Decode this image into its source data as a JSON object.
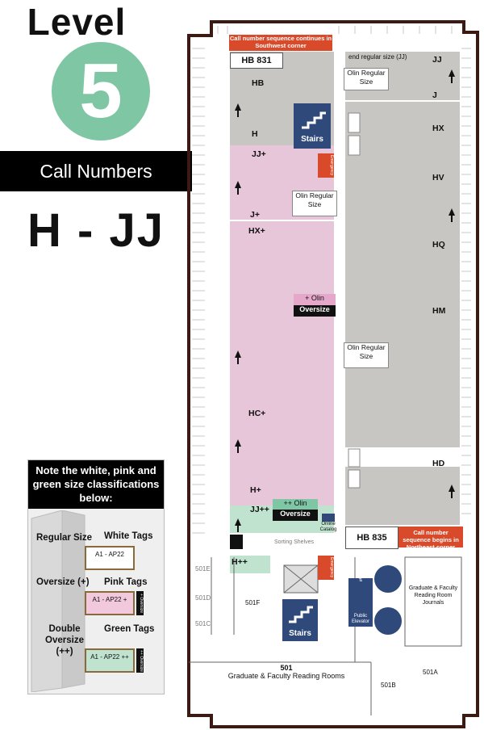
{
  "header": {
    "level_word": "Level",
    "level_number": "5",
    "call_numbers_label": "Call Numbers",
    "range": "H - JJ"
  },
  "legend": {
    "heading": "Note the white, pink and green size classifications below:",
    "regular_label": "Regular Size",
    "white_tags": "White Tags",
    "oversize_label": "Oversize (+)",
    "pink_tags": "Pink Tags",
    "double_label": "Double Oversize (++)",
    "green_tags": "Green Tags",
    "tag_regular": "A1 - AP22",
    "tag_over": "A1 - AP22 +",
    "tag_double": "A1 - AP22 ++",
    "side_over": "+ Oversize",
    "side_double": "++ Oversize"
  },
  "map": {
    "hb_top": "HB 831",
    "hb_bottom": "HB 835",
    "banner_top": "Call number sequence continues in Southwest corner",
    "banner_bottom": "Call number sequence begins in Northeast corner",
    "end_regular": "end regular size (JJ)",
    "olin_regular": "Olin Regular Size",
    "olin_plus": "+ Olin",
    "olin_plusplus": "++ Olin",
    "oversize": "Oversize",
    "stairs": "Stairs",
    "emergency": "Emergency",
    "online_catalog": "Online Catalog",
    "sorting_shelves": "Sorting Shelves",
    "public_elevator": "Public Elevator",
    "grad_journals": "Graduate & Faculty Reading Room Journals",
    "room_501": "501",
    "room_501_name": "Graduate & Faculty Reading Rooms",
    "room_501a": "501A",
    "room_501b": "501B",
    "room_501c": "501C",
    "room_501d": "501D",
    "room_501e": "501E",
    "room_501f": "501F",
    "labels_left": [
      "HB",
      "H",
      "JJ+",
      "J+",
      "HX+",
      "HC+",
      "H+",
      "JJ++",
      "H++"
    ],
    "labels_right": [
      "JJ",
      "J",
      "HX",
      "HV",
      "HQ",
      "HM",
      "HD"
    ]
  },
  "colors": {
    "green": "#7fc6a4",
    "pink": "#e8c6d9",
    "gray": "#c8c6c3",
    "red": "#d94a2b",
    "navy": "#2f4a7a",
    "wall": "#3a1a12"
  }
}
